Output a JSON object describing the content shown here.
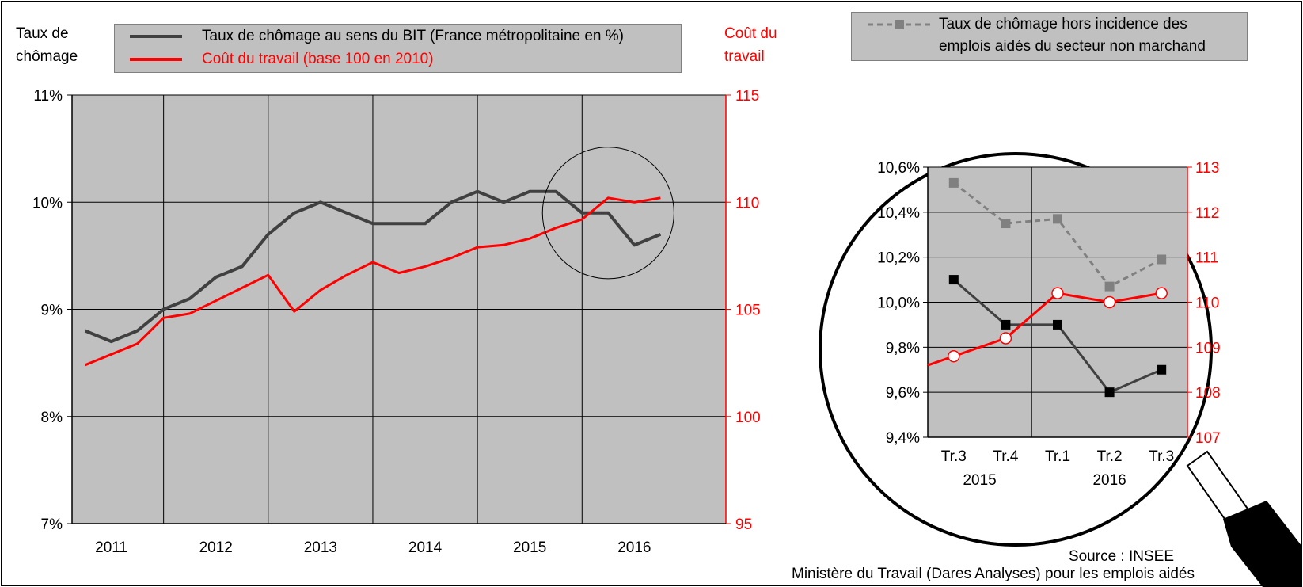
{
  "chart_data": [
    {
      "type": "line",
      "left_axis_title": [
        "Taux de",
        "chômage"
      ],
      "right_axis_title": [
        "Coût du",
        "travail"
      ],
      "legend": {
        "unemployment": "Taux de chômage au sens du BIT (France métropolitaine en %)",
        "labour_cost": "Coût du travail (base 100 en 2010)"
      },
      "x_years": [
        "2011",
        "2012",
        "2013",
        "2014",
        "2015",
        "2016"
      ],
      "y_left_ticks": [
        "7%",
        "8%",
        "9%",
        "10%",
        "11%"
      ],
      "y_left_lim": [
        7,
        11
      ],
      "y_right_ticks": [
        "95",
        "100",
        "105",
        "110",
        "115"
      ],
      "y_right_lim": [
        95,
        115
      ],
      "quarters": [
        "2011-T1",
        "2011-T2",
        "2011-T3",
        "2011-T4",
        "2012-T1",
        "2012-T2",
        "2012-T3",
        "2012-T4",
        "2013-T1",
        "2013-T2",
        "2013-T3",
        "2013-T4",
        "2014-T1",
        "2014-T2",
        "2014-T3",
        "2014-T4",
        "2015-T1",
        "2015-T2",
        "2015-T3",
        "2015-T4",
        "2016-T1",
        "2016-T2",
        "2016-T3"
      ],
      "series": [
        {
          "name": "Taux de chômage au sens du BIT (France métropolitaine en %)",
          "axis": "left",
          "color": "#404040",
          "values": [
            8.8,
            8.7,
            8.8,
            9.0,
            9.1,
            9.3,
            9.4,
            9.7,
            9.9,
            10.0,
            9.9,
            9.8,
            9.8,
            9.8,
            10.0,
            10.1,
            10.0,
            10.1,
            10.1,
            9.9,
            9.9,
            9.6,
            9.7
          ]
        },
        {
          "name": "Coût du travail (base 100 en 2010)",
          "axis": "right",
          "color": "#ff0000",
          "values": [
            102.4,
            102.9,
            103.4,
            104.6,
            104.8,
            105.4,
            106.0,
            106.6,
            104.9,
            105.9,
            106.6,
            107.2,
            106.7,
            107.0,
            107.4,
            107.9,
            108.0,
            108.3,
            108.8,
            109.2,
            110.2,
            110.0,
            110.2
          ]
        }
      ],
      "zoom_circle_quarters": [
        "2015-T3",
        "2016-T3"
      ]
    },
    {
      "type": "line",
      "legend": {
        "hors_incidence": "Taux de chômage hors incidence des emplois aidés du secteur non marchand"
      },
      "categories": [
        "Tr.3",
        "Tr.4",
        "Tr.1",
        "Tr.2",
        "Tr.3"
      ],
      "year_labels": [
        "2015",
        "2016"
      ],
      "y_left_ticks": [
        "9,4%",
        "9,6%",
        "9,8%",
        "10,0%",
        "10,2%",
        "10,4%",
        "10,6%"
      ],
      "y_left_lim": [
        9.4,
        10.6
      ],
      "y_right_ticks": [
        "107",
        "108",
        "109",
        "110",
        "111",
        "112",
        "113"
      ],
      "y_right_lim": [
        107,
        113
      ],
      "series": [
        {
          "name": "Taux de chômage hors incidence des emplois aidés du secteur non marchand",
          "axis": "left",
          "color": "#808080",
          "values": [
            10.53,
            10.35,
            10.37,
            10.07,
            10.19
          ]
        },
        {
          "name": "Taux de chômage au sens du BIT (France métropolitaine en %)",
          "axis": "left",
          "color": "#404040",
          "values": [
            10.1,
            9.9,
            9.9,
            9.6,
            9.7
          ]
        },
        {
          "name": "Coût du travail (base 100 en 2010)",
          "axis": "right",
          "color": "#ff0000",
          "values": [
            108.8,
            109.2,
            110.2,
            110.0,
            110.2
          ]
        }
      ]
    }
  ],
  "source": {
    "line1": "Source : INSEE",
    "line2": "Ministère du Travail (Dares Analyses) pour les emplois aidés"
  }
}
